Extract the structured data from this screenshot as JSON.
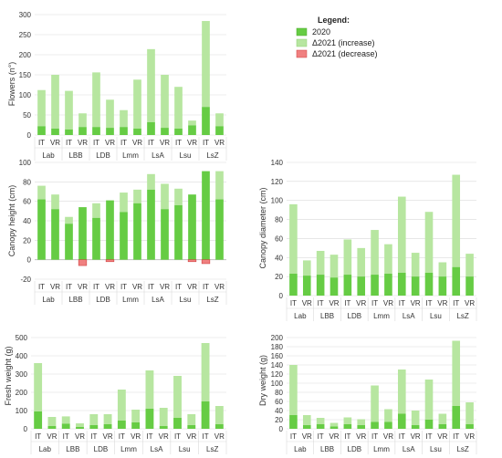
{
  "colors": {
    "base": "#66cc44",
    "increase": "#b7e6a0",
    "decrease": "#f08080",
    "grid": "#d9d9d9",
    "axis": "#bfbfbf",
    "text": "#333333"
  },
  "legend": {
    "title": "Legend:",
    "items": [
      {
        "label": "2020",
        "color": "#66cc44"
      },
      {
        "label": "Δ2021 (increase)",
        "color": "#b7e6a0"
      },
      {
        "label": "Δ2021 (decrease)",
        "color": "#f08080"
      }
    ]
  },
  "chart_data": [
    {
      "type": "bar",
      "stacked": true,
      "ylabel": "Flowers (n°)",
      "ylim": [
        0,
        300
      ],
      "yticks": [
        0,
        50,
        100,
        150,
        200,
        250,
        300
      ],
      "groups": [
        "Lab",
        "LBB",
        "LDB",
        "Lmm",
        "LsA",
        "Lsu",
        "LsZ"
      ],
      "categories": [
        "IT",
        "VR",
        "IT",
        "VR",
        "IT",
        "VR",
        "IT",
        "VR",
        "IT",
        "VR",
        "IT",
        "VR",
        "IT",
        "VR"
      ],
      "series": [
        {
          "name": "2020",
          "values": [
            22,
            16,
            14,
            20,
            20,
            18,
            20,
            16,
            32,
            18,
            16,
            24,
            70,
            22
          ]
        },
        {
          "name": "Δ2021 (increase)",
          "values": [
            90,
            134,
            96,
            34,
            136,
            70,
            42,
            122,
            182,
            132,
            104,
            12,
            214,
            32
          ]
        },
        {
          "name": "Δ2021 (decrease)",
          "values": [
            0,
            0,
            0,
            0,
            0,
            0,
            0,
            0,
            0,
            0,
            0,
            0,
            0,
            0
          ]
        }
      ]
    },
    {
      "type": "bar",
      "stacked": true,
      "ylabel": "Canopy height (cm)",
      "ylim": [
        -20,
        100
      ],
      "yticks": [
        -20,
        0,
        20,
        40,
        60,
        80,
        100
      ],
      "groups": [
        "Lab",
        "LBB",
        "LDB",
        "Lmm",
        "LsA",
        "Lsu",
        "LsZ"
      ],
      "categories": [
        "IT",
        "VR",
        "IT",
        "VR",
        "IT",
        "VR",
        "IT",
        "VR",
        "IT",
        "VR",
        "IT",
        "VR",
        "IT",
        "VR"
      ],
      "series": [
        {
          "name": "2020",
          "values": [
            62,
            52,
            37,
            54,
            43,
            61,
            49,
            58,
            72,
            52,
            56,
            67,
            91,
            62
          ]
        },
        {
          "name": "Δ2021 (increase)",
          "values": [
            14,
            15,
            7,
            0,
            15,
            0,
            20,
            14,
            16,
            26,
            17,
            0,
            0,
            29
          ]
        },
        {
          "name": "Δ2021 (decrease)",
          "values": [
            0,
            0,
            0,
            -6,
            0,
            -2,
            0,
            0,
            0,
            0,
            0,
            -2,
            -4,
            0
          ]
        }
      ]
    },
    {
      "type": "bar",
      "stacked": true,
      "ylabel": "Canopy diameter (cm)",
      "ylim": [
        0,
        140
      ],
      "yticks": [
        0,
        20,
        40,
        60,
        80,
        100,
        120,
        140
      ],
      "groups": [
        "Lab",
        "LBB",
        "LDB",
        "Lmm",
        "LsA",
        "Lsu",
        "LsZ"
      ],
      "categories": [
        "IT",
        "VR",
        "IT",
        "VR",
        "IT",
        "VR",
        "IT",
        "VR",
        "IT",
        "VR",
        "IT",
        "VR",
        "IT",
        "VR"
      ],
      "series": [
        {
          "name": "2020",
          "values": [
            23,
            21,
            22,
            19,
            22,
            20,
            22,
            23,
            24,
            20,
            24,
            20,
            30,
            20
          ]
        },
        {
          "name": "Δ2021 (increase)",
          "values": [
            73,
            16,
            25,
            24,
            37,
            30,
            47,
            31,
            80,
            25,
            64,
            15,
            97,
            24
          ]
        },
        {
          "name": "Δ2021 (decrease)",
          "values": [
            0,
            0,
            0,
            0,
            0,
            0,
            0,
            0,
            0,
            0,
            0,
            0,
            0,
            0
          ]
        }
      ]
    },
    {
      "type": "bar",
      "stacked": true,
      "ylabel": "Fresh weight (g)",
      "ylim": [
        0,
        500
      ],
      "yticks": [
        0,
        100,
        200,
        300,
        400,
        500
      ],
      "groups": [
        "Lab",
        "LBB",
        "LDB",
        "Lmm",
        "LsA",
        "Lsu",
        "LsZ"
      ],
      "categories": [
        "IT",
        "VR",
        "IT",
        "VR",
        "IT",
        "VR",
        "IT",
        "VR",
        "IT",
        "VR",
        "IT",
        "VR",
        "IT",
        "VR"
      ],
      "series": [
        {
          "name": "2020",
          "values": [
            95,
            15,
            28,
            10,
            20,
            25,
            45,
            35,
            110,
            15,
            60,
            20,
            150,
            25
          ]
        },
        {
          "name": "Δ2021 (increase)",
          "values": [
            265,
            50,
            40,
            20,
            60,
            55,
            170,
            70,
            210,
            100,
            230,
            60,
            320,
            100
          ]
        },
        {
          "name": "Δ2021 (decrease)",
          "values": [
            0,
            0,
            0,
            0,
            0,
            0,
            0,
            0,
            0,
            0,
            0,
            0,
            0,
            0
          ]
        }
      ]
    },
    {
      "type": "bar",
      "stacked": true,
      "ylabel": "Dry weight (g)",
      "ylim": [
        0,
        200
      ],
      "yticks": [
        0,
        20,
        40,
        60,
        80,
        100,
        120,
        140,
        160,
        180,
        200
      ],
      "groups": [
        "Lab",
        "LBB",
        "LDB",
        "Lmm",
        "LsA",
        "Lsu",
        "LsZ"
      ],
      "categories": [
        "IT",
        "VR",
        "IT",
        "VR",
        "IT",
        "VR",
        "IT",
        "VR",
        "IT",
        "VR",
        "IT",
        "VR",
        "IT",
        "VR"
      ],
      "series": [
        {
          "name": "2020",
          "values": [
            30,
            8,
            10,
            5,
            10,
            8,
            15,
            15,
            33,
            8,
            20,
            10,
            50,
            10
          ]
        },
        {
          "name": "Δ2021 (increase)",
          "values": [
            110,
            22,
            14,
            8,
            15,
            13,
            80,
            28,
            97,
            32,
            88,
            23,
            143,
            48
          ]
        },
        {
          "name": "Δ2021 (decrease)",
          "values": [
            0,
            0,
            0,
            0,
            0,
            0,
            0,
            0,
            0,
            0,
            0,
            0,
            0,
            0
          ]
        }
      ]
    }
  ]
}
